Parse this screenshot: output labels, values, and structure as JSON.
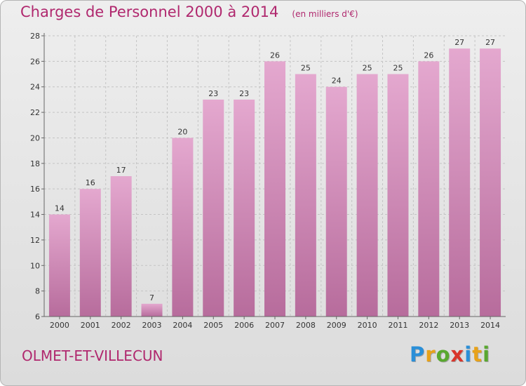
{
  "header": {
    "title": "Charges de Personnel 2000 à 2014",
    "subtitle": "(en milliers d'€)"
  },
  "footer": {
    "commune": "OLMET-ET-VILLECUN",
    "logo_letters": [
      "P",
      "r",
      "o",
      "x",
      "i",
      "t",
      "i"
    ],
    "logo_colors": [
      "#2a8fd8",
      "#e8a21a",
      "#59a82f",
      "#d9352b",
      "#2a8fd8",
      "#e8a21a",
      "#59a82f"
    ]
  },
  "chart_data": {
    "type": "bar",
    "title": "Charges de Personnel 2000 à 2014",
    "subtitle": "(en milliers d'€)",
    "categories": [
      "2000",
      "2001",
      "2002",
      "2003",
      "2004",
      "2005",
      "2006",
      "2007",
      "2008",
      "2009",
      "2010",
      "2011",
      "2012",
      "2013",
      "2014"
    ],
    "values": [
      14,
      16,
      17,
      7,
      20,
      23,
      23,
      26,
      25,
      24,
      25,
      25,
      26,
      27,
      27
    ],
    "data_labels": [
      "14",
      "16",
      "17",
      "7",
      "20",
      "23",
      "23",
      "26",
      "25",
      "24",
      "25",
      "25",
      "26",
      "27",
      "27"
    ],
    "ylim": [
      6,
      28
    ],
    "yticks": [
      6,
      8,
      10,
      12,
      14,
      16,
      18,
      20,
      22,
      24,
      26,
      28
    ],
    "grid": true,
    "bar_color_top": "#e4a8cf",
    "bar_color_bottom": "#b76c9c"
  }
}
